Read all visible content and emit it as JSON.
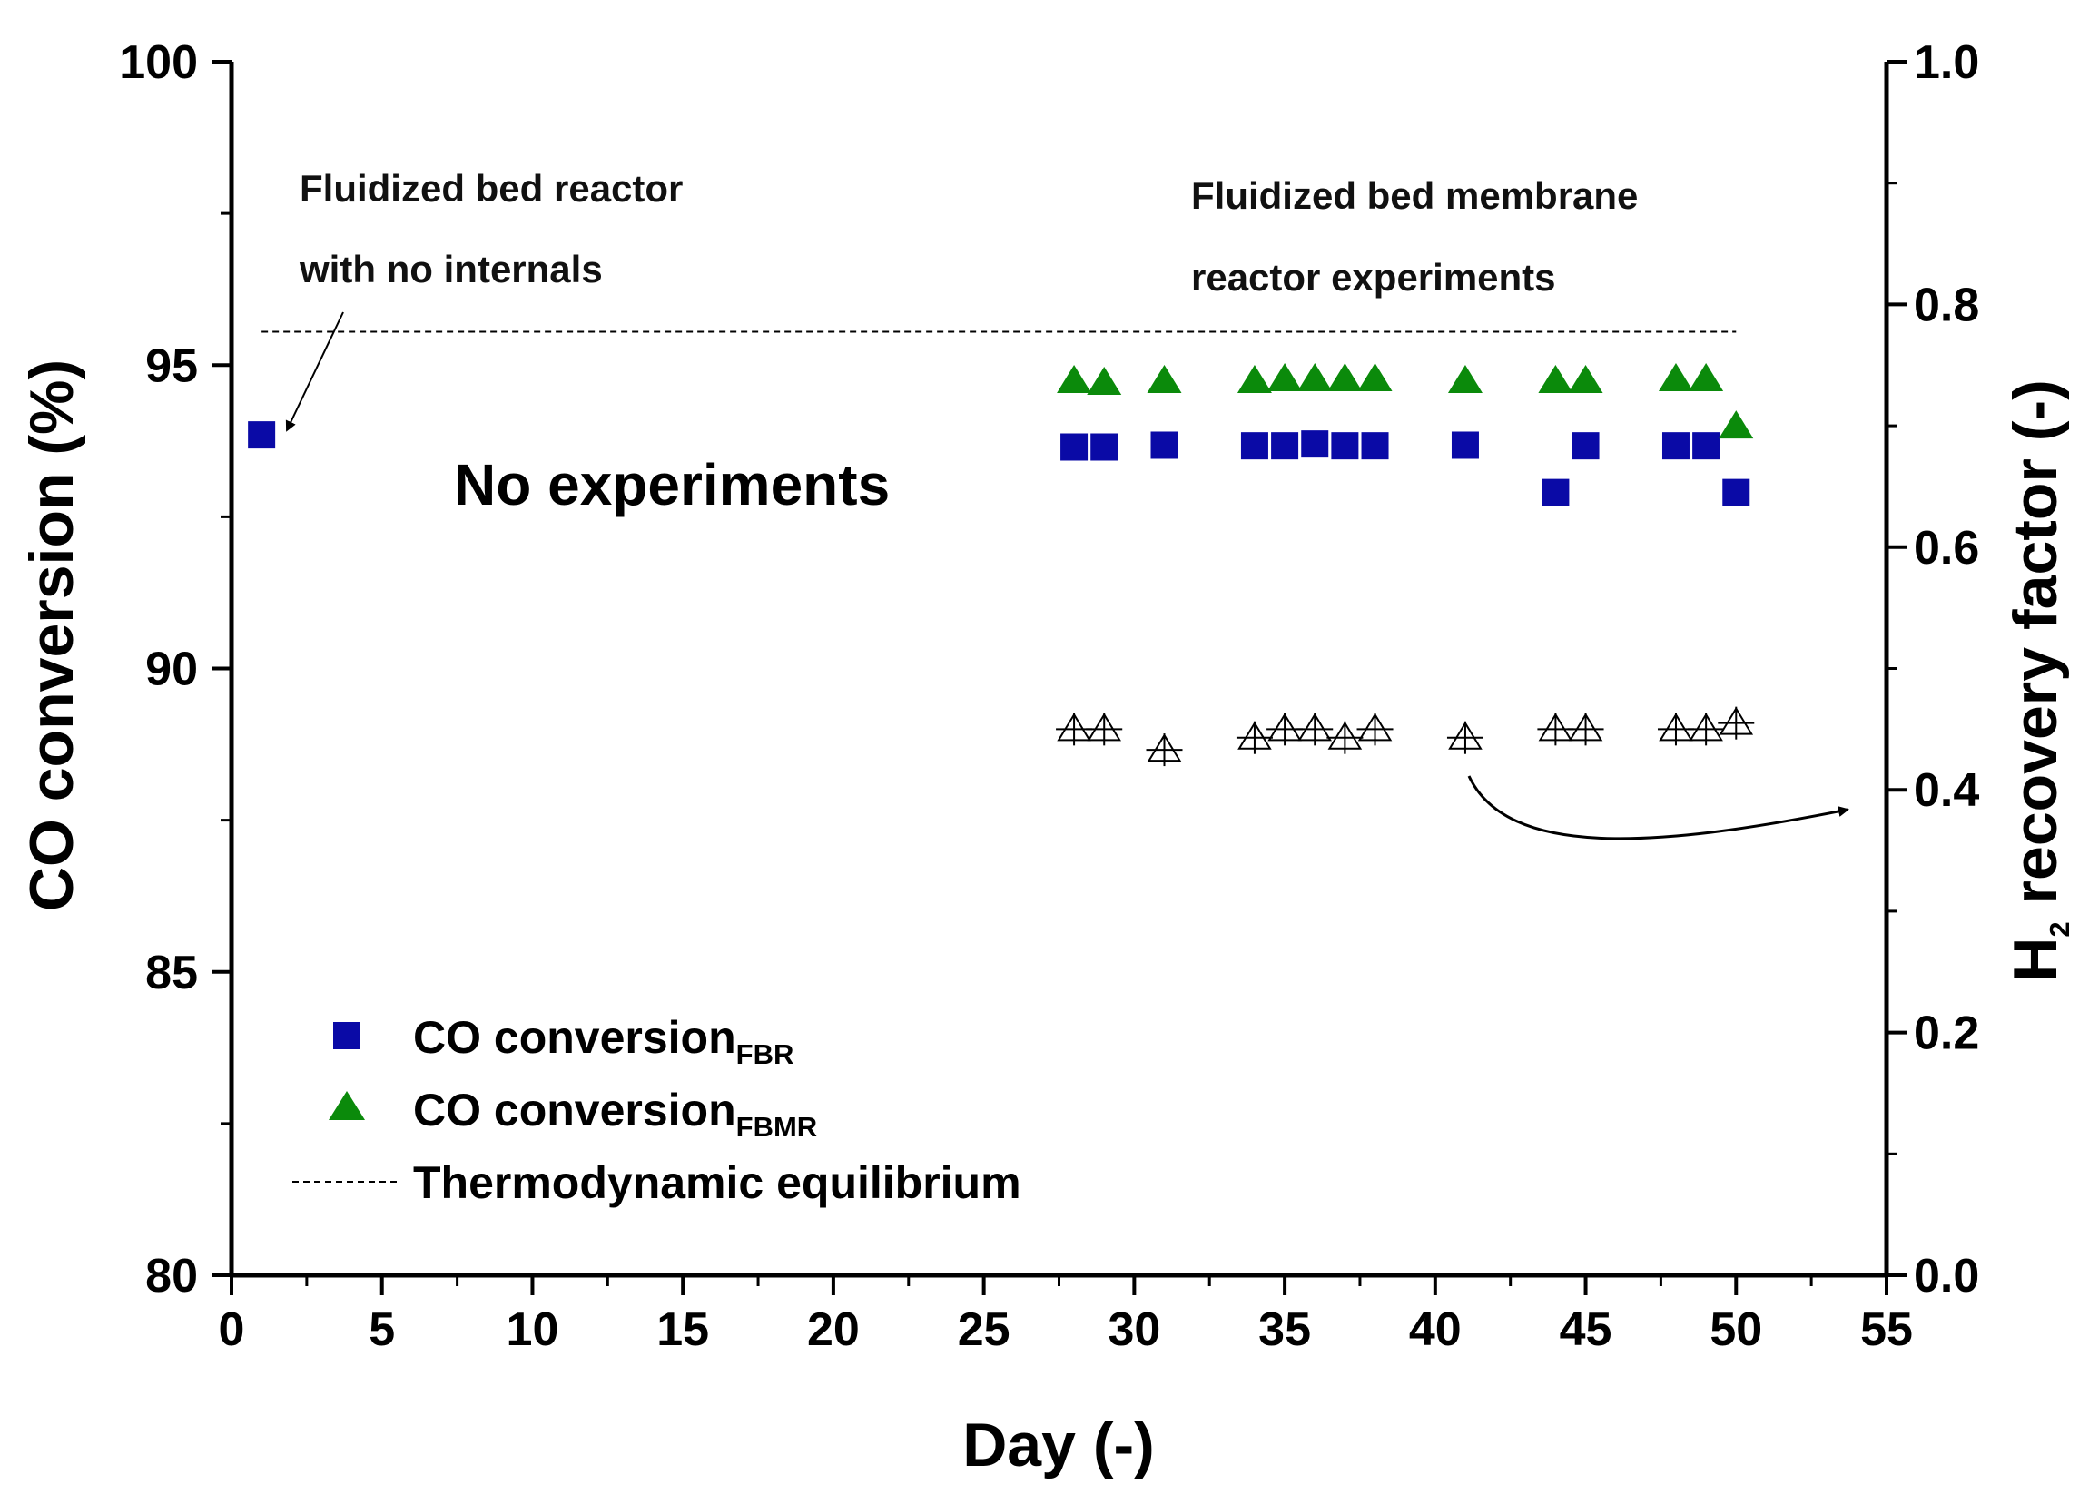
{
  "chart_data": {
    "type": "scatter",
    "xlabel": "Day (-)",
    "ylabel_left": "CO conversion (%)",
    "ylabel_right_main": "H",
    "ylabel_right_sub": "2",
    "ylabel_right_rest": " recovery factor (-)",
    "xlim": [
      0,
      55
    ],
    "ylim_left": [
      80,
      100
    ],
    "ylim_right": [
      0.0,
      1.0
    ],
    "x_ticks": [
      0,
      5,
      10,
      15,
      20,
      25,
      30,
      35,
      40,
      45,
      50,
      55
    ],
    "x_tick_labels": [
      "0",
      "5",
      "10",
      "15",
      "20",
      "25",
      "30",
      "35",
      "40",
      "45",
      "50",
      "55"
    ],
    "y_left_ticks": [
      80,
      85,
      90,
      95,
      100
    ],
    "y_left_tick_labels": [
      "80",
      "85",
      "90",
      "95",
      "100"
    ],
    "y_right_ticks": [
      0.0,
      0.2,
      0.4,
      0.6,
      0.8,
      1.0
    ],
    "y_right_tick_labels": [
      "0.0",
      "0.2",
      "0.4",
      "0.6",
      "0.8",
      "1.0"
    ],
    "equilibrium": 95.55,
    "series": [
      {
        "name_main": "CO conversion",
        "name_sub": "FBR",
        "marker": "square",
        "color": "#0a0aa6",
        "axis": "left",
        "points": [
          [
            1,
            93.85
          ],
          [
            28,
            93.65
          ],
          [
            29,
            93.65
          ],
          [
            31,
            93.68
          ],
          [
            34,
            93.67
          ],
          [
            35,
            93.67
          ],
          [
            36,
            93.7
          ],
          [
            37,
            93.67
          ],
          [
            38,
            93.67
          ],
          [
            41,
            93.68
          ],
          [
            44,
            92.9
          ],
          [
            45,
            93.67
          ],
          [
            48,
            93.67
          ],
          [
            49,
            93.67
          ],
          [
            50,
            92.9
          ]
        ]
      },
      {
        "name_main": "CO conversion",
        "name_sub": "FBMR",
        "marker": "triangle",
        "color": "#0b8a0b",
        "axis": "left",
        "points": [
          [
            28,
            94.75
          ],
          [
            29,
            94.72
          ],
          [
            31,
            94.75
          ],
          [
            34,
            94.75
          ],
          [
            35,
            94.78
          ],
          [
            36,
            94.78
          ],
          [
            37,
            94.78
          ],
          [
            38,
            94.78
          ],
          [
            41,
            94.75
          ],
          [
            44,
            94.75
          ],
          [
            45,
            94.75
          ],
          [
            48,
            94.78
          ],
          [
            49,
            94.78
          ],
          [
            50,
            94.0
          ]
        ]
      },
      {
        "name_main": "H2 recovery factor",
        "marker": "open-triangle",
        "color": "#000000",
        "axis": "right",
        "points": [
          [
            28,
            0.45
          ],
          [
            29,
            0.45
          ],
          [
            31,
            0.433
          ],
          [
            34,
            0.443
          ],
          [
            35,
            0.45
          ],
          [
            36,
            0.45
          ],
          [
            37,
            0.443
          ],
          [
            38,
            0.45
          ],
          [
            41,
            0.443
          ],
          [
            44,
            0.45
          ],
          [
            45,
            0.45
          ],
          [
            48,
            0.45
          ],
          [
            49,
            0.45
          ],
          [
            50,
            0.455
          ]
        ]
      }
    ],
    "legend_equilibrium": "Thermodynamic equilibrium",
    "annotations": {
      "fbr_line1": "Fluidized bed reactor",
      "fbr_line2": "with no internals",
      "fbmr_line1": "Fluidized bed membrane",
      "fbmr_line2": "reactor experiments",
      "no_exp": "No experiments"
    }
  }
}
